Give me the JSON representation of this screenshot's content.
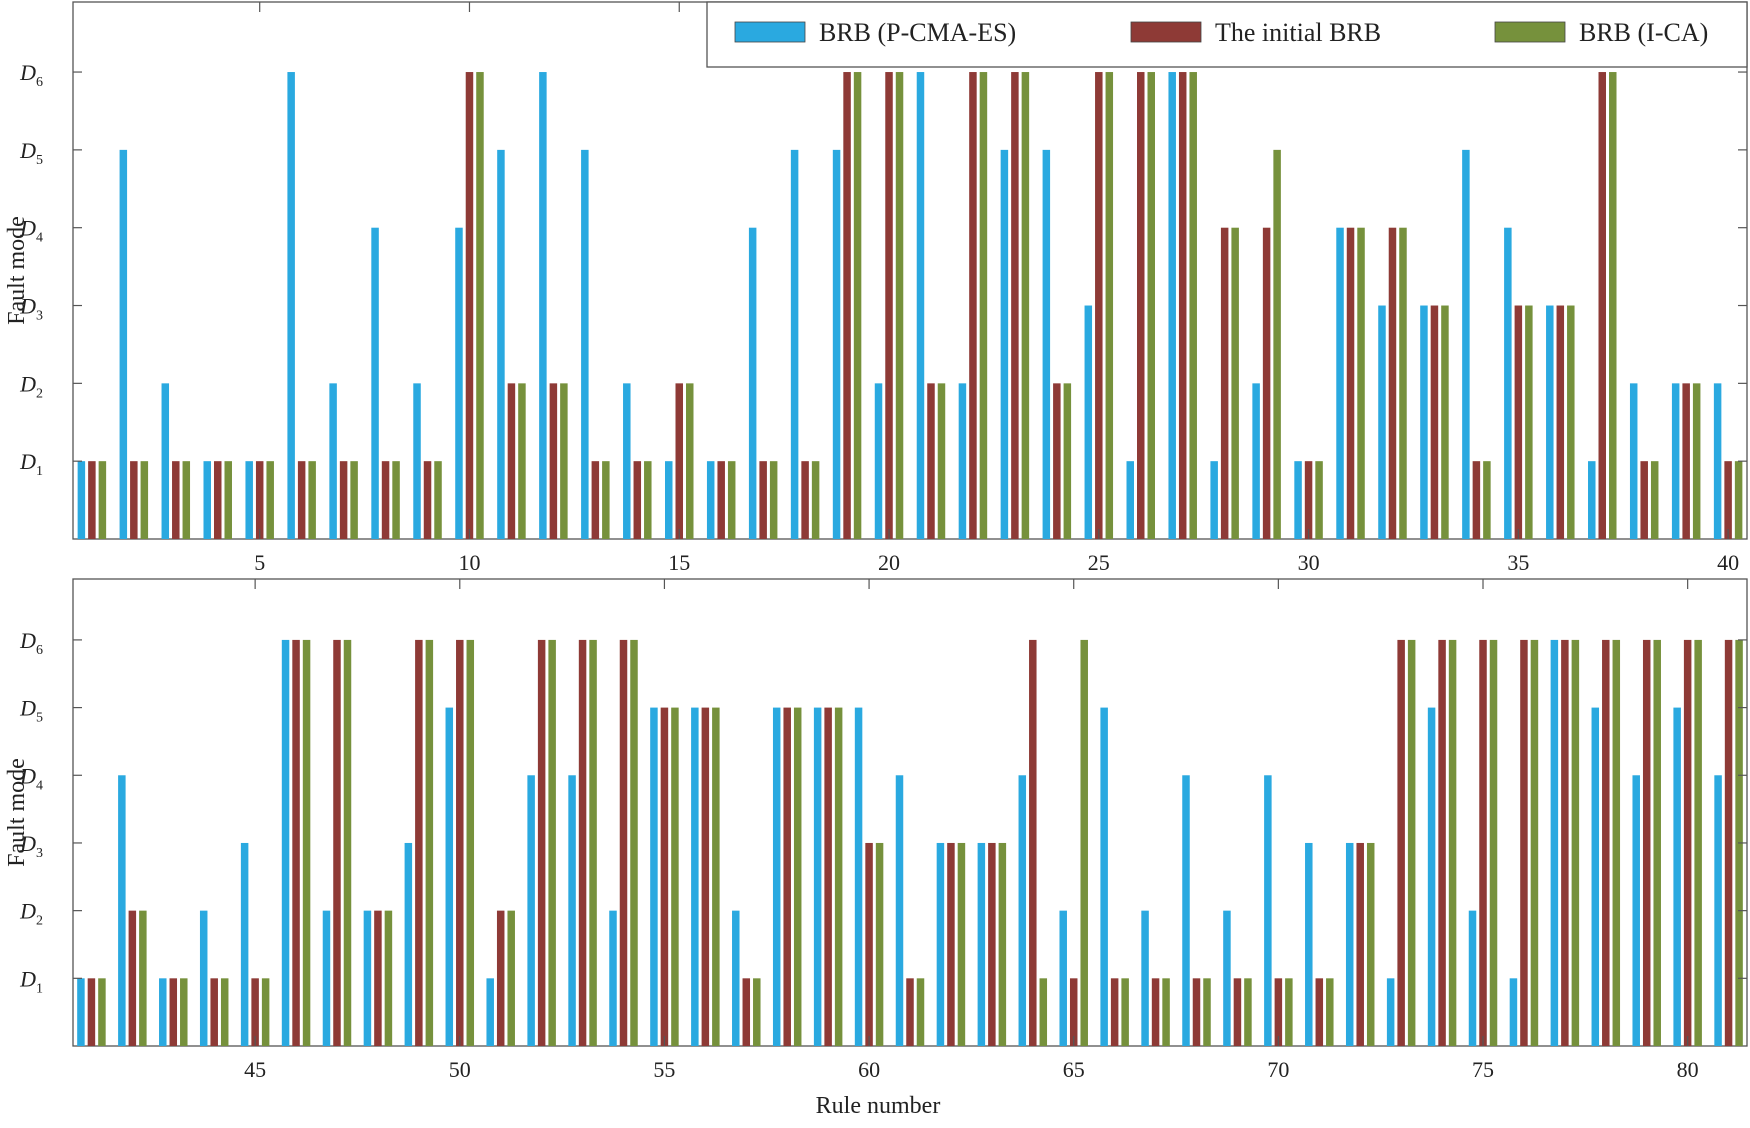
{
  "chart_data": {
    "type": "bar",
    "xlabel": "Rule number",
    "ylabel": "Fault mode",
    "y_ticks": [
      {
        "value": 1,
        "main": "D",
        "sub": "1"
      },
      {
        "value": 2,
        "main": "D",
        "sub": "2"
      },
      {
        "value": 3,
        "main": "D",
        "sub": "3"
      },
      {
        "value": 4,
        "main": "D",
        "sub": "4"
      },
      {
        "value": 5,
        "main": "D",
        "sub": "5"
      },
      {
        "value": 6,
        "main": "D",
        "sub": "6"
      }
    ],
    "ylim": [
      0,
      6.9
    ],
    "legend": {
      "position": "top-right",
      "entries": [
        {
          "label": "BRB (P-CMA-ES)",
          "color": "#2aa9e0"
        },
        {
          "label": "The initial BRB",
          "color": "#8e3a36"
        },
        {
          "label": "BRB (I-CA)",
          "color": "#76913c"
        }
      ]
    },
    "panels": [
      {
        "name": "rules-1-40",
        "xlim": [
          0.55,
          40.45
        ],
        "x_tick_values": [
          5,
          10,
          15,
          20,
          25,
          30,
          35,
          40
        ],
        "x_tick_labels": [
          "5",
          "10",
          "15",
          "20",
          "25",
          "30",
          "35",
          "40"
        ],
        "x": [
          1,
          2,
          3,
          4,
          5,
          6,
          7,
          8,
          9,
          10,
          11,
          12,
          13,
          14,
          15,
          16,
          17,
          18,
          19,
          20,
          21,
          22,
          23,
          24,
          25,
          26,
          27,
          28,
          29,
          30,
          31,
          32,
          33,
          34,
          35,
          36,
          37,
          38,
          39,
          40
        ],
        "series": [
          {
            "name": "BRB (P-CMA-ES)",
            "values": [
              1,
              5,
              2,
              1,
              1,
              6,
              2,
              4,
              2,
              4,
              5,
              6,
              5,
              2,
              1,
              1,
              4,
              5,
              5,
              2,
              6,
              2,
              5,
              5,
              3,
              1,
              6,
              1,
              2,
              1,
              4,
              3,
              3,
              5,
              4,
              3,
              1,
              2,
              2,
              2
            ]
          },
          {
            "name": "The initial BRB",
            "values": [
              1,
              1,
              1,
              1,
              1,
              1,
              1,
              1,
              1,
              6,
              2,
              2,
              1,
              1,
              2,
              1,
              1,
              1,
              6,
              6,
              2,
              6,
              6,
              2,
              6,
              6,
              6,
              4,
              4,
              1,
              4,
              4,
              3,
              1,
              3,
              3,
              6,
              1,
              2,
              1
            ]
          },
          {
            "name": "BRB (I-CA)",
            "values": [
              1,
              1,
              1,
              1,
              1,
              1,
              1,
              1,
              1,
              6,
              2,
              2,
              1,
              1,
              2,
              1,
              1,
              1,
              6,
              6,
              2,
              6,
              6,
              2,
              6,
              6,
              6,
              4,
              5,
              1,
              4,
              4,
              3,
              1,
              3,
              3,
              6,
              1,
              2,
              1
            ]
          }
        ]
      },
      {
        "name": "rules-41-81",
        "xlim": [
          40.55,
          81.45
        ],
        "x_tick_values": [
          45,
          50,
          55,
          60,
          65,
          70,
          75,
          80
        ],
        "x_tick_labels": [
          "45",
          "50",
          "55",
          "60",
          "65",
          "70",
          "75",
          "80"
        ],
        "x": [
          41,
          42,
          43,
          44,
          45,
          46,
          47,
          48,
          49,
          50,
          51,
          52,
          53,
          54,
          55,
          56,
          57,
          58,
          59,
          60,
          61,
          62,
          63,
          64,
          65,
          66,
          67,
          68,
          69,
          70,
          71,
          72,
          73,
          74,
          75,
          76,
          77,
          78,
          79,
          80,
          81
        ],
        "series": [
          {
            "name": "BRB (P-CMA-ES)",
            "values": [
              1,
              4,
              1,
              2,
              3,
              6,
              2,
              2,
              3,
              5,
              1,
              4,
              4,
              2,
              5,
              5,
              2,
              5,
              5,
              5,
              4,
              3,
              3,
              4,
              2,
              5,
              2,
              4,
              2,
              4,
              3,
              3,
              1,
              5,
              2,
              1,
              6,
              5,
              4,
              5,
              4
            ]
          },
          {
            "name": "The initial BRB",
            "values": [
              1,
              2,
              1,
              1,
              1,
              6,
              6,
              2,
              6,
              6,
              2,
              6,
              6,
              6,
              5,
              5,
              1,
              5,
              5,
              3,
              1,
              3,
              3,
              6,
              1,
              1,
              1,
              1,
              1,
              1,
              1,
              3,
              6,
              6,
              6,
              6,
              6,
              6,
              6,
              6,
              6
            ]
          },
          {
            "name": "BRB (I-CA)",
            "values": [
              1,
              2,
              1,
              1,
              1,
              6,
              6,
              2,
              6,
              6,
              2,
              6,
              6,
              6,
              5,
              5,
              1,
              5,
              5,
              3,
              1,
              3,
              3,
              1,
              6,
              1,
              1,
              1,
              1,
              1,
              1,
              3,
              6,
              6,
              6,
              6,
              6,
              6,
              6,
              6,
              6
            ]
          }
        ]
      }
    ]
  }
}
